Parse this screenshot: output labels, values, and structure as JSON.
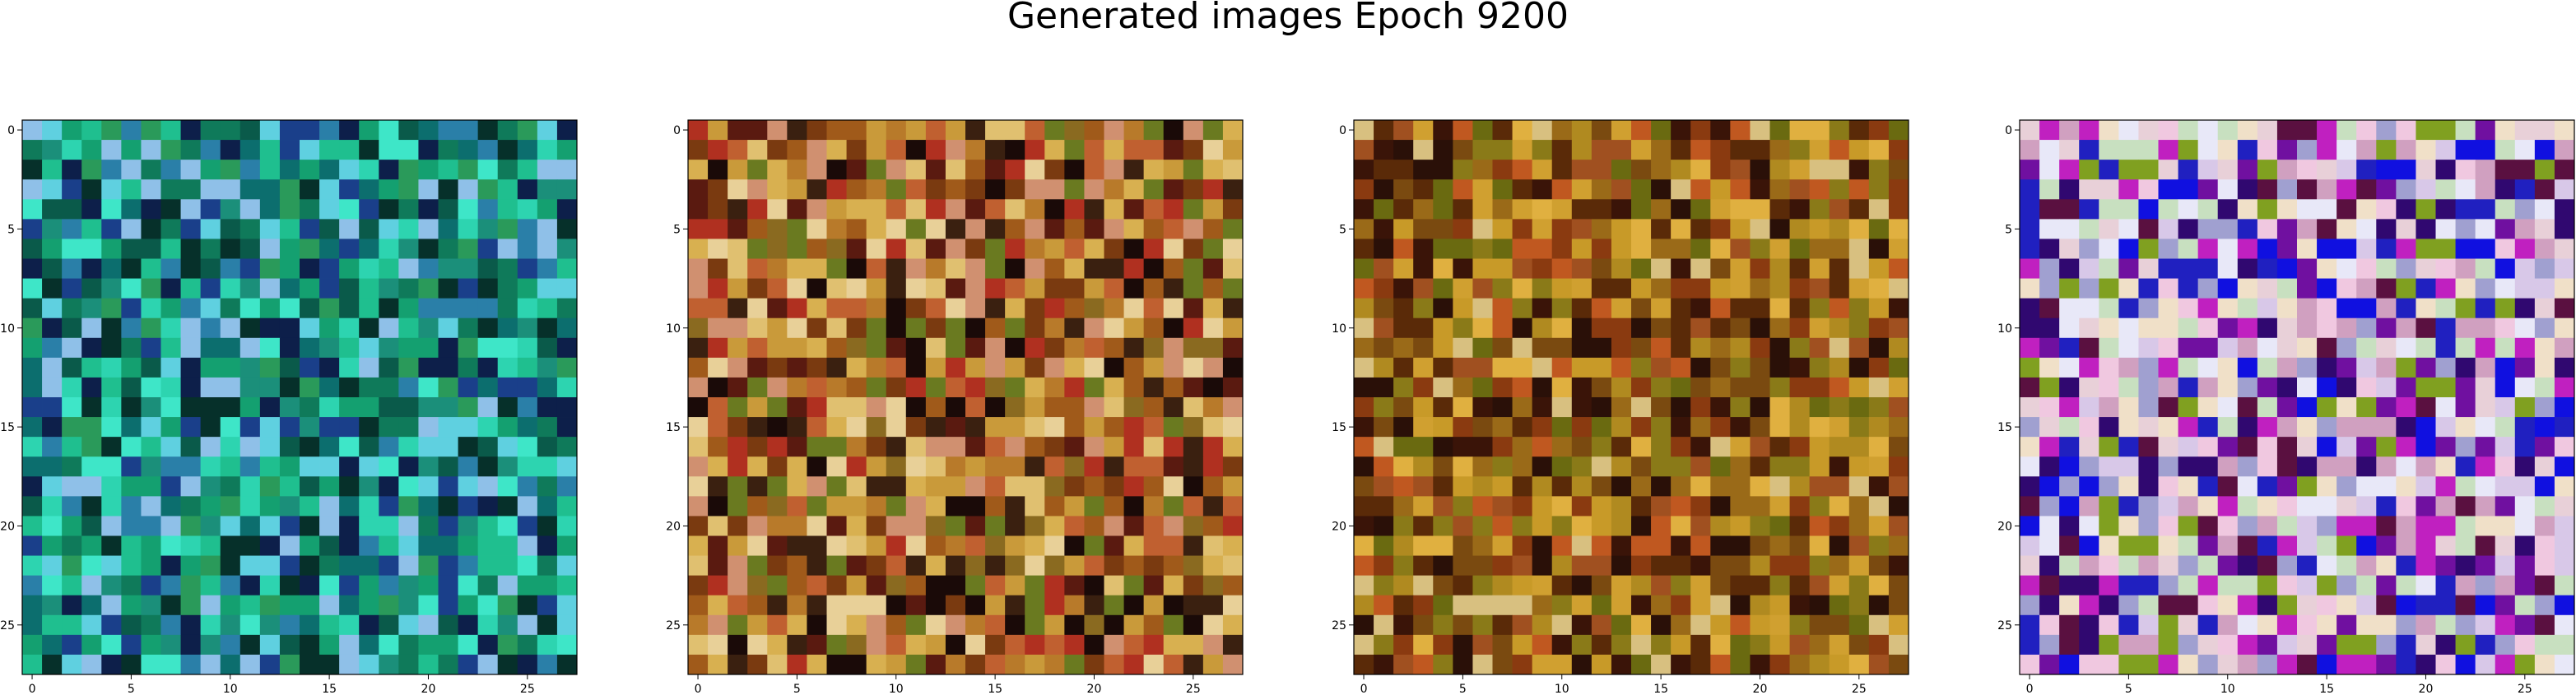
{
  "figure": {
    "title": "Generated images Epoch 9200"
  },
  "chart_data": [
    {
      "type": "heatmap",
      "title": "",
      "xlabel": "",
      "ylabel": "",
      "grid_size": 28,
      "xlim": [
        -0.5,
        27.5
      ],
      "ylim": [
        27.5,
        -0.5
      ],
      "xticks": [
        0,
        5,
        10,
        15,
        20,
        25
      ],
      "yticks": [
        0,
        5,
        10,
        15,
        20,
        25
      ],
      "grid": false,
      "palette": "teal-green",
      "colors": [
        "#0a5a4a",
        "#0f7a5a",
        "#14a070",
        "#1fbf8f",
        "#2dd4b0",
        "#3ee6c8",
        "#1b8f7a",
        "#0c6e6e",
        "#2a7fa8",
        "#1a3f8a",
        "#0d1f4a",
        "#5fd0e0",
        "#8fc0e8",
        "#2a9a5a",
        "#06302a"
      ]
    },
    {
      "type": "heatmap",
      "title": "",
      "xlabel": "",
      "ylabel": "",
      "grid_size": 28,
      "xlim": [
        -0.5,
        27.5
      ],
      "ylim": [
        27.5,
        -0.5
      ],
      "xticks": [
        0,
        5,
        10,
        15,
        20,
        25
      ],
      "yticks": [
        0,
        5,
        10,
        15,
        20,
        25
      ],
      "grid": false,
      "palette": "warm-brown",
      "colors": [
        "#c99a3a",
        "#b87a2a",
        "#d8b050",
        "#a05a1a",
        "#7a3a10",
        "#5a1a10",
        "#8a6a20",
        "#c06030",
        "#e0c070",
        "#d09070",
        "#3a2010",
        "#1a0a08",
        "#6a7a20",
        "#b03020",
        "#e8d098"
      ]
    },
    {
      "type": "heatmap",
      "title": "",
      "xlabel": "",
      "ylabel": "",
      "grid_size": 28,
      "xlim": [
        -0.5,
        27.5
      ],
      "ylim": [
        27.5,
        -0.5
      ],
      "xticks": [
        0,
        5,
        10,
        15,
        20,
        25
      ],
      "yticks": [
        0,
        5,
        10,
        15,
        20,
        25
      ],
      "grid": false,
      "palette": "ochre-dark",
      "colors": [
        "#b08a20",
        "#c89a28",
        "#9a6a18",
        "#7a4a10",
        "#5a2a08",
        "#3a1408",
        "#8a7a18",
        "#d0a030",
        "#a05020",
        "#6a6a10",
        "#e0b040",
        "#2a1008",
        "#c05820",
        "#8a3a10",
        "#d8c080"
      ]
    },
    {
      "type": "heatmap",
      "title": "",
      "xlabel": "",
      "ylabel": "",
      "grid_size": 28,
      "xlim": [
        -0.5,
        27.5
      ],
      "ylim": [
        27.5,
        -0.5
      ],
      "xticks": [
        0,
        5,
        10,
        15,
        20,
        25
      ],
      "yticks": [
        0,
        5,
        10,
        15,
        20,
        25
      ],
      "grid": false,
      "palette": "pastel-violet-blue",
      "colors": [
        "#e8d0d8",
        "#f0e0c8",
        "#d8c8e8",
        "#c8e0c0",
        "#f0c8e0",
        "#2020c0",
        "#1010e0",
        "#300870",
        "#7010a0",
        "#c020c0",
        "#80a020",
        "#d0a0c0",
        "#a0a0d0",
        "#e8e8f8",
        "#5a1040"
      ]
    }
  ]
}
